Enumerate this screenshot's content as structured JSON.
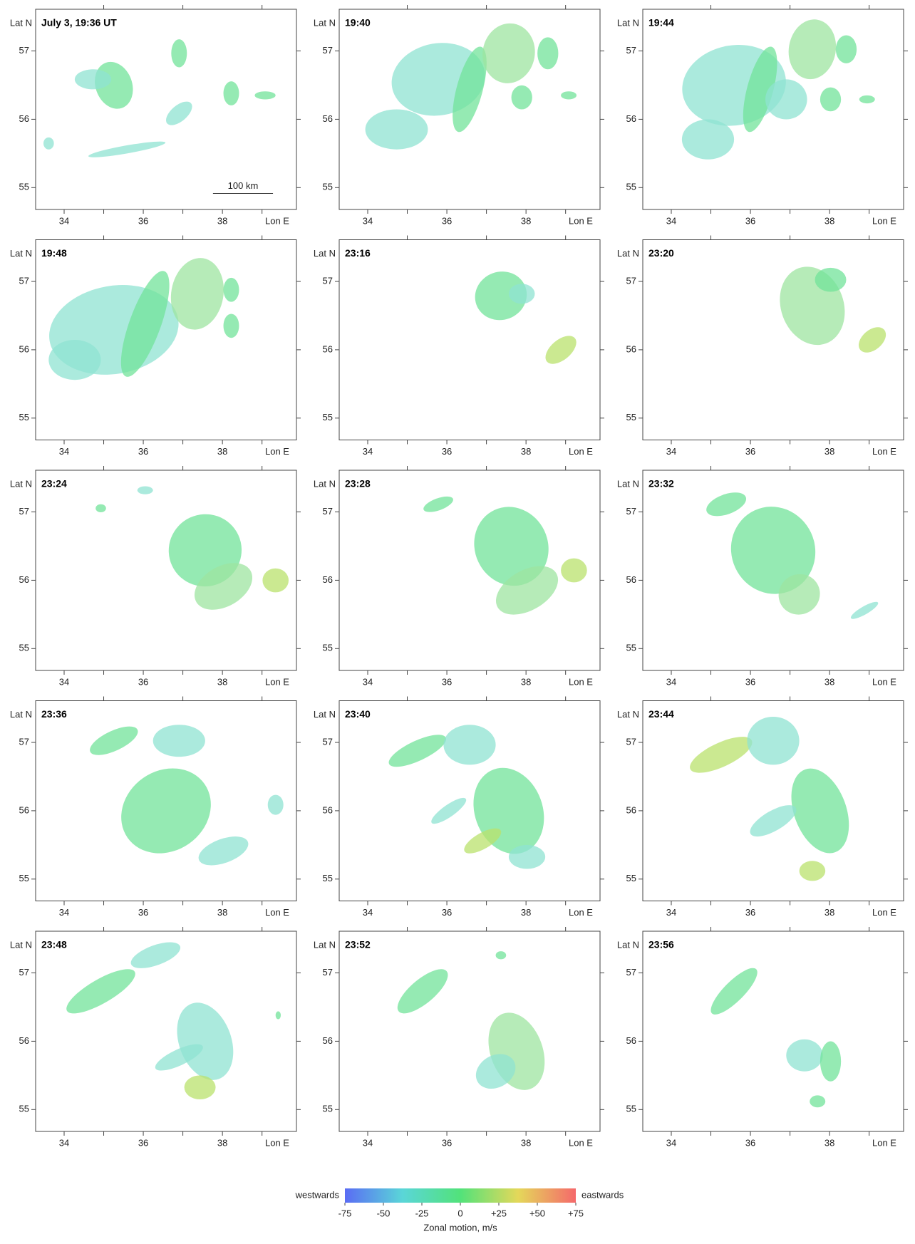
{
  "panels": [
    {
      "title": "July 3, 19:36 UT"
    },
    {
      "title": "19:40"
    },
    {
      "title": "19:44"
    },
    {
      "title": "19:48"
    },
    {
      "title": "23:16"
    },
    {
      "title": "23:20"
    },
    {
      "title": "23:24"
    },
    {
      "title": "23:28"
    },
    {
      "title": "23:32"
    },
    {
      "title": "23:36"
    },
    {
      "title": "23:40"
    },
    {
      "title": "23:44"
    },
    {
      "title": "23:48"
    },
    {
      "title": "23:52"
    },
    {
      "title": "23:56"
    }
  ],
  "axes": {
    "y_label": "Lat N",
    "x_label": "Lon E",
    "xlim": [
      33.28,
      39.87
    ],
    "xticks": [
      34,
      36,
      38
    ],
    "x_minor_ticks": [
      35,
      37,
      39
    ],
    "ylim": [
      54.68,
      57.61
    ],
    "yticks": [
      55,
      56,
      57
    ]
  },
  "scale_bar": "100 km",
  "colorbar": {
    "label": "Zonal motion, m/s",
    "left_label": "westwards",
    "right_label": "eastwards",
    "range": [
      -75,
      75
    ],
    "ticks": [
      -75,
      -50,
      -25,
      0,
      {
        "value": 25,
        "label": "+25"
      },
      {
        "value": 50,
        "label": "+50"
      },
      {
        "value": 75,
        "label": "+75"
      }
    ],
    "colors": [
      "#5a6cf4",
      "#5ad6d8",
      "#52e27a",
      "#e4d85a",
      "#f5696b"
    ]
  }
}
